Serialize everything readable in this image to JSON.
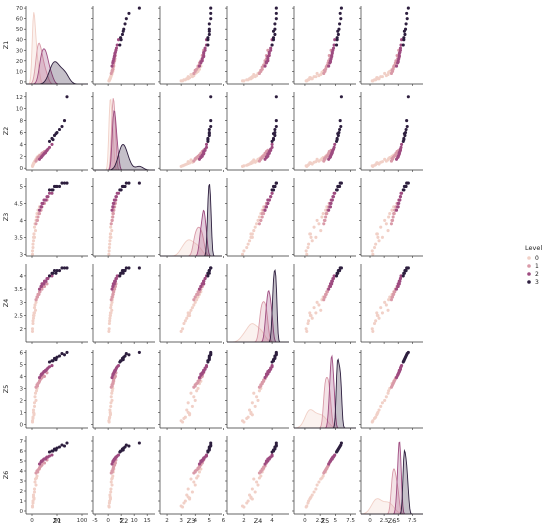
{
  "chart_data": {
    "type": "scatter",
    "subtype": "pairplot",
    "variables": [
      "Z1",
      "Z2",
      "Z3",
      "Z4",
      "Z5",
      "Z6"
    ],
    "axes": {
      "Z1": {
        "range": [
          -12,
          112
        ],
        "ticks": [
          0,
          50,
          100
        ],
        "label": "Z1"
      },
      "Z2": {
        "range": [
          -5.8,
          18
        ],
        "ticks": [
          -5,
          0,
          5,
          10,
          15
        ],
        "y_range": [
          -0.3,
          12.8
        ],
        "y_ticks": [
          0,
          2,
          4,
          6,
          8,
          10,
          12
        ],
        "label": "Z2"
      },
      "Z3": {
        "range": [
          1.5,
          5.9
        ],
        "ticks": [
          2,
          3,
          4,
          5,
          6
        ],
        "y_range": [
          2.95,
          5.25
        ],
        "y_ticks": [
          3.0,
          3.5,
          4.0,
          4.5,
          5.0
        ],
        "label": "Z3"
      },
      "Z4": {
        "range": [
          0.8,
          5.2
        ],
        "ticks": [
          2,
          4
        ],
        "y_range": [
          1.5,
          4.45
        ],
        "y_ticks": [
          2.0,
          2.5,
          3.0,
          3.5,
          4.0
        ],
        "label": "Z4"
      },
      "Z5": {
        "range": [
          -1.8,
          8.4
        ],
        "ticks": [
          0.0,
          2.5,
          5.0,
          7.5
        ],
        "y_range": [
          -0.3,
          6.2
        ],
        "y_ticks": [
          0,
          1,
          2,
          3,
          4,
          5,
          6
        ],
        "label": "Z5"
      },
      "Z6": {
        "range": [
          -1.6,
          9.4
        ],
        "ticks": [
          0.0,
          2.5,
          5.0,
          7.5
        ],
        "y_range": [
          -0.3,
          7.5
        ],
        "y_ticks": [
          0,
          1,
          2,
          3,
          4,
          5,
          6,
          7
        ],
        "label": "Z6"
      }
    },
    "Z1_y_ticks": [
      0,
      10,
      20,
      30,
      40,
      50,
      60,
      70
    ],
    "Z1_y_range": [
      -2,
      72
    ],
    "legend": {
      "title": "Level",
      "placement": "center-right",
      "entries": [
        "0",
        "1",
        "2",
        "3"
      ]
    },
    "series": [
      {
        "name": "0",
        "color": "#f1d0c7",
        "points": [
          [
            2,
            0.5,
            3.2,
            2.2,
            0.5,
            0.8
          ],
          [
            3,
            0.8,
            3.5,
            2.5,
            1.0,
            1.4
          ],
          [
            5,
            1.0,
            3.8,
            2.8,
            1.5,
            1.9
          ],
          [
            1,
            0.3,
            3.0,
            1.9,
            0.3,
            0.5
          ],
          [
            8,
            1.5,
            4.0,
            3.0,
            2.0,
            2.6
          ],
          [
            4,
            0.9,
            3.6,
            2.6,
            0.8,
            1.2
          ],
          [
            6,
            1.2,
            3.9,
            2.9,
            2.3,
            2.9
          ],
          [
            2,
            0.6,
            3.3,
            2.3,
            0.6,
            1.0
          ],
          [
            10,
            1.8,
            4.2,
            3.2,
            3.0,
            3.5
          ],
          [
            3,
            0.7,
            3.4,
            2.4,
            1.2,
            1.6
          ],
          [
            7,
            1.4,
            3.7,
            2.7,
            2.6,
            3.2
          ],
          [
            1,
            0.4,
            3.1,
            2.0,
            0.2,
            0.4
          ],
          [
            12,
            2.0,
            4.3,
            3.3,
            3.4,
            3.9
          ],
          [
            5,
            1.1,
            3.5,
            2.6,
            1.8,
            2.2
          ],
          [
            9,
            1.6,
            4.1,
            3.1,
            2.8,
            3.3
          ],
          [
            4,
            0.9,
            3.6,
            2.5,
            0.9,
            1.3
          ],
          [
            15,
            2.2,
            4.4,
            3.4,
            3.6,
            4.2
          ]
        ]
      },
      {
        "name": "1",
        "color": "#d99aa8",
        "points": [
          [
            10,
            1.5,
            4.0,
            3.2,
            3.3,
            4.0
          ],
          [
            15,
            2.0,
            4.2,
            3.4,
            3.6,
            4.3
          ],
          [
            20,
            2.5,
            4.4,
            3.5,
            3.9,
            4.6
          ],
          [
            12,
            1.8,
            4.1,
            3.3,
            3.4,
            4.1
          ],
          [
            18,
            2.2,
            4.3,
            3.5,
            3.8,
            4.5
          ],
          [
            25,
            2.8,
            4.5,
            3.6,
            4.0,
            4.8
          ],
          [
            8,
            1.2,
            3.9,
            3.1,
            3.1,
            3.8
          ],
          [
            14,
            1.9,
            4.2,
            3.3,
            3.5,
            4.2
          ],
          [
            22,
            2.6,
            4.5,
            3.6,
            4.1,
            4.9
          ],
          [
            30,
            3.0,
            4.6,
            3.7,
            4.3,
            5.1
          ],
          [
            16,
            2.1,
            4.3,
            3.4,
            3.7,
            4.4
          ],
          [
            11,
            1.6,
            4.0,
            3.2,
            3.2,
            3.9
          ]
        ]
      },
      {
        "name": "2",
        "color": "#9e4b80",
        "points": [
          [
            20,
            2.0,
            4.5,
            3.7,
            4.2,
            5.0
          ],
          [
            25,
            2.5,
            4.6,
            3.8,
            4.4,
            5.2
          ],
          [
            30,
            3.0,
            4.7,
            3.9,
            4.6,
            5.4
          ],
          [
            18,
            1.8,
            4.4,
            3.6,
            4.1,
            4.9
          ],
          [
            35,
            3.5,
            4.8,
            4.0,
            4.8,
            5.5
          ],
          [
            28,
            2.8,
            4.6,
            3.8,
            4.5,
            5.3
          ],
          [
            22,
            2.2,
            4.5,
            3.7,
            4.3,
            5.1
          ],
          [
            40,
            4.0,
            4.8,
            4.0,
            4.9,
            5.6
          ],
          [
            15,
            1.5,
            4.3,
            3.5,
            3.9,
            4.7
          ],
          [
            32,
            3.2,
            4.7,
            3.9,
            4.7,
            5.4
          ],
          [
            24,
            2.4,
            4.6,
            3.7,
            4.4,
            5.2
          ],
          [
            27,
            2.6,
            4.6,
            3.8,
            4.5,
            5.2
          ],
          [
            19,
            1.9,
            4.4,
            3.6,
            4.2,
            5.0
          ]
        ]
      },
      {
        "name": "3",
        "color": "#2d1e3e",
        "points": [
          [
            40,
            5.0,
            4.9,
            4.1,
            5.3,
            6.0
          ],
          [
            50,
            6.0,
            5.0,
            4.2,
            5.6,
            6.3
          ],
          [
            60,
            7.0,
            5.1,
            4.3,
            5.9,
            6.6
          ],
          [
            70,
            12.0,
            5.1,
            4.3,
            6.0,
            6.8
          ],
          [
            45,
            5.5,
            5.0,
            4.2,
            5.5,
            6.2
          ],
          [
            55,
            6.5,
            5.0,
            4.2,
            5.7,
            6.4
          ],
          [
            35,
            4.5,
            4.9,
            4.0,
            5.2,
            5.9
          ],
          [
            65,
            8.0,
            5.1,
            4.3,
            5.8,
            6.5
          ],
          [
            48,
            5.8,
            5.0,
            4.1,
            5.4,
            6.1
          ],
          [
            42,
            4.8,
            4.9,
            4.1,
            5.3,
            6.0
          ]
        ]
      }
    ]
  }
}
